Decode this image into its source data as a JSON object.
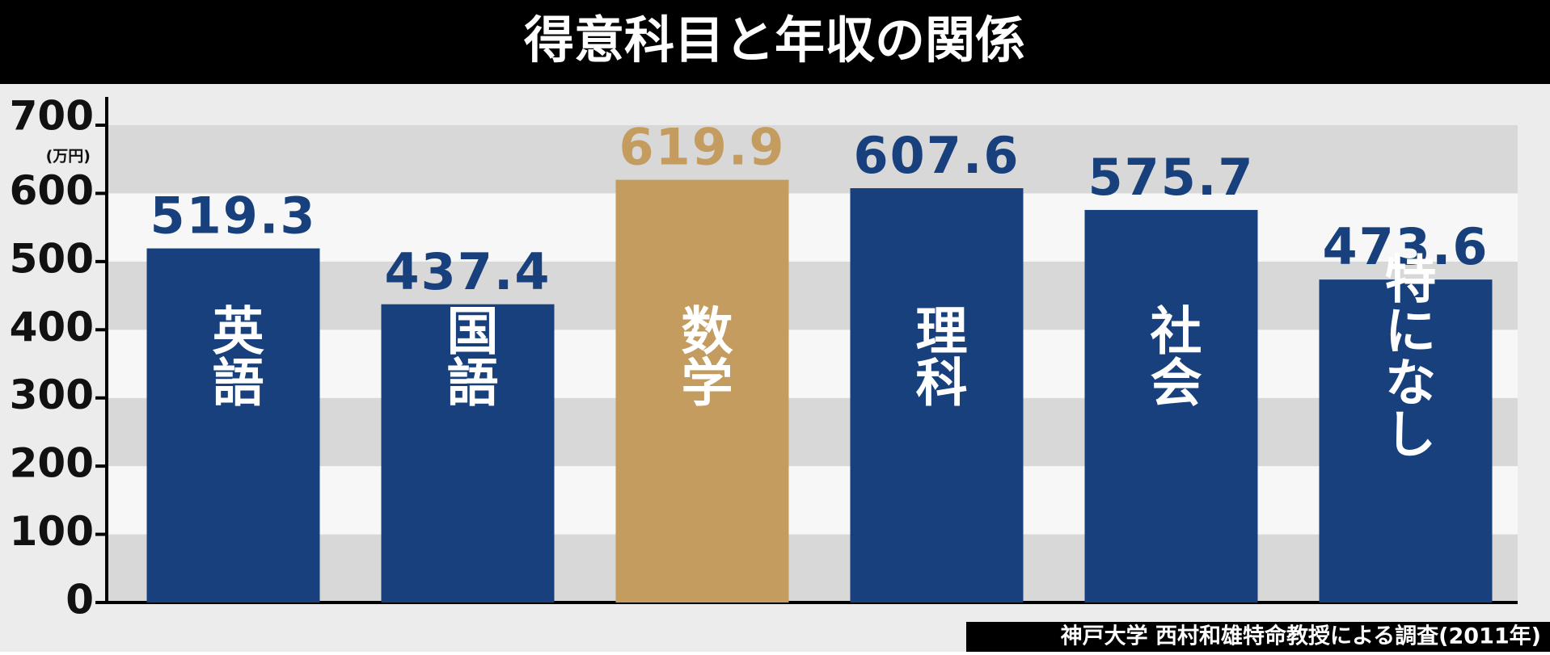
{
  "chart_data": {
    "type": "bar",
    "title": "得意科目と年収の関係",
    "y_unit": "(万円)",
    "categories": [
      "英語",
      "国語",
      "数学",
      "理科",
      "社会",
      "特になし"
    ],
    "values": [
      519.3,
      437.4,
      619.9,
      607.6,
      575.7,
      473.6
    ],
    "colors": [
      "#17407c",
      "#17407c",
      "#c49c60",
      "#17407c",
      "#17407c",
      "#17407c"
    ],
    "ylim": [
      0,
      700
    ],
    "yticks": [
      0,
      100,
      200,
      300,
      400,
      500,
      600,
      700
    ],
    "source": "神戸大学 西村和雄特命教授による調査(2011年)"
  }
}
